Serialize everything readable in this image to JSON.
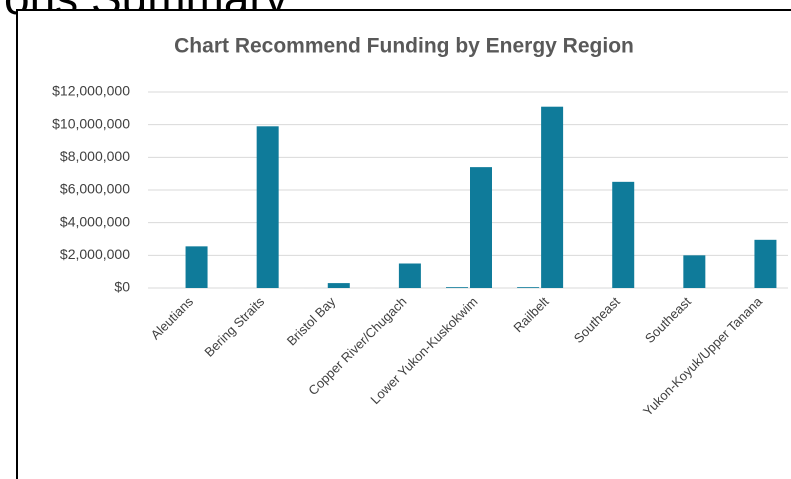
{
  "heading": "ons Summary",
  "chart_data": {
    "type": "bar",
    "title": "Chart Recommend Funding by Energy Region",
    "categories": [
      "Aleutians",
      "Bering Straits",
      "Bristol Bay",
      "Copper River/Chugach",
      "Lower Yukon-Kuskokwim",
      "Railbelt",
      "Southeast",
      "Southeast",
      "Yukon-Koyuk/Upper Tanana"
    ],
    "series": [
      {
        "color": "#0f7b9a",
        "values": [
          0,
          0,
          0,
          0,
          50000,
          50000,
          0,
          0,
          0
        ]
      },
      {
        "color": "#0f7b9a",
        "values": [
          2550000,
          9900000,
          300000,
          1500000,
          7400000,
          11100000,
          6500000,
          2000000,
          2950000
        ]
      }
    ],
    "ylim": [
      0,
      12000000
    ],
    "yticks": [
      {
        "value": 0,
        "label": "$0"
      },
      {
        "value": 2000000,
        "label": "$2,000,000"
      },
      {
        "value": 4000000,
        "label": "$4,000,000"
      },
      {
        "value": 6000000,
        "label": "$6,000,000"
      },
      {
        "value": 8000000,
        "label": "$8,000,000"
      },
      {
        "value": 10000000,
        "label": "$10,000,000"
      },
      {
        "value": 12000000,
        "label": "$12,000,000"
      }
    ],
    "grid": true
  }
}
